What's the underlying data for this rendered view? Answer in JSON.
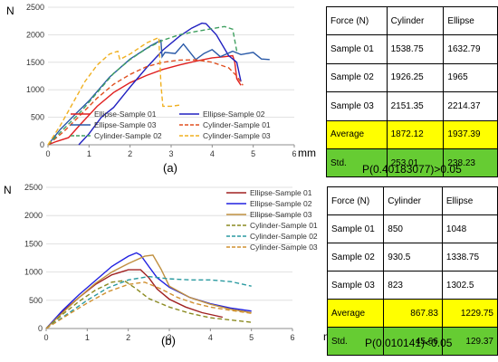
{
  "chart_data": [
    {
      "type": "line",
      "panel_label": "(a)",
      "ylabel": "N",
      "xlabel": "mm",
      "xlim": [
        0,
        6
      ],
      "ylim": [
        0,
        2500
      ],
      "xticks": [
        "0",
        "1",
        "2",
        "3",
        "4",
        "5",
        "6"
      ],
      "yticks": [
        "0",
        "500",
        "1000",
        "1500",
        "2000",
        "2500"
      ],
      "legend_position": "bottom",
      "series": [
        {
          "name": "Ellipse-Sample 01",
          "color": "#e02020",
          "dash": "solid",
          "x": [
            0,
            0.2,
            0.5,
            0.8,
            1.2,
            1.6,
            2.0,
            2.4,
            2.8,
            3.2,
            3.6,
            4.0,
            4.3,
            4.5,
            4.55,
            4.6,
            4.7
          ],
          "y": [
            0,
            60,
            130,
            380,
            700,
            950,
            1130,
            1260,
            1370,
            1450,
            1520,
            1580,
            1600,
            1620,
            1500,
            1200,
            1080
          ]
        },
        {
          "name": "Ellipse-Sample 02",
          "color": "#2020c0",
          "dash": "solid",
          "x": [
            0.75,
            1.0,
            1.3,
            1.6,
            2.0,
            2.4,
            2.8,
            3.2,
            3.5,
            3.75,
            3.85,
            4.1,
            4.4,
            4.6,
            4.7
          ],
          "y": [
            0,
            200,
            500,
            680,
            1050,
            1400,
            1720,
            1970,
            2120,
            2210,
            2200,
            2000,
            1620,
            1500,
            1150
          ]
        },
        {
          "name": "Ellipse-Sample 03",
          "color": "#2a5aa8",
          "dash": "solid",
          "x": [
            0,
            0.3,
            0.7,
            1.0,
            1.5,
            2.0,
            2.5,
            2.75,
            2.78,
            2.85,
            3.1,
            3.3,
            3.6,
            3.8,
            4.0,
            4.2,
            4.5,
            4.7,
            5.0,
            5.2,
            5.4
          ],
          "y": [
            0,
            280,
            580,
            800,
            1230,
            1560,
            1800,
            1900,
            1600,
            1680,
            1660,
            1830,
            1550,
            1660,
            1730,
            1600,
            1700,
            1640,
            1680,
            1560,
            1550
          ]
        },
        {
          "name": "Cylinder-Sample 01",
          "color": "#e05020",
          "dash": "dash",
          "x": [
            0,
            0.4,
            0.8,
            1.2,
            1.6,
            2.0,
            2.4,
            2.8,
            3.2,
            3.6,
            4.0,
            4.4,
            4.6,
            4.75
          ],
          "y": [
            0,
            250,
            550,
            850,
            1100,
            1280,
            1420,
            1500,
            1540,
            1545,
            1500,
            1400,
            1250,
            1080
          ]
        },
        {
          "name": "Cylinder-Sample 02",
          "color": "#40a060",
          "dash": "dash",
          "x": [
            0,
            0.4,
            0.8,
            1.2,
            1.6,
            2.0,
            2.4,
            2.8,
            3.2,
            3.6,
            4.0,
            4.3,
            4.5,
            4.6
          ],
          "y": [
            0,
            300,
            600,
            950,
            1300,
            1550,
            1750,
            1900,
            2000,
            2060,
            2110,
            2150,
            2100,
            1700
          ]
        },
        {
          "name": "Cylinder-Sample 03",
          "color": "#f0b020",
          "dash": "dash",
          "x": [
            0,
            0.3,
            0.6,
            0.9,
            1.2,
            1.5,
            1.7,
            1.75,
            2.0,
            2.4,
            2.7,
            2.75,
            2.8,
            3.0,
            3.2
          ],
          "y": [
            0,
            350,
            750,
            1150,
            1450,
            1650,
            1700,
            1550,
            1650,
            1850,
            1950,
            1100,
            700,
            700,
            720
          ]
        }
      ]
    },
    {
      "type": "line",
      "panel_label": "(b)",
      "ylabel": "N",
      "xlabel": "mm",
      "xlim": [
        0,
        6
      ],
      "ylim": [
        0,
        2500
      ],
      "xticks": [
        "0",
        "1",
        "2",
        "3",
        "4",
        "5",
        "6"
      ],
      "yticks": [
        "0",
        "500",
        "1000",
        "1500",
        "2000",
        "2500"
      ],
      "legend_position": "top-right",
      "series": [
        {
          "name": "Ellipse-Sample 01",
          "color": "#a02020",
          "dash": "solid",
          "x": [
            0,
            0.4,
            0.8,
            1.2,
            1.6,
            2.0,
            2.3,
            2.5,
            2.7,
            3.0,
            3.4,
            3.8,
            4.3
          ],
          "y": [
            0,
            300,
            550,
            780,
            950,
            1040,
            1040,
            900,
            700,
            520,
            380,
            280,
            200
          ]
        },
        {
          "name": "Ellipse-Sample 02",
          "color": "#2020e0",
          "dash": "solid",
          "x": [
            0,
            0.4,
            0.8,
            1.2,
            1.6,
            2.0,
            2.2,
            2.3,
            2.5,
            2.7,
            3.0,
            3.5,
            4.0,
            4.5,
            5.0
          ],
          "y": [
            0,
            320,
            600,
            850,
            1100,
            1280,
            1340,
            1300,
            1100,
            900,
            730,
            550,
            440,
            360,
            310
          ]
        },
        {
          "name": "Ellipse-Sample 03",
          "color": "#c09040",
          "dash": "solid",
          "x": [
            0,
            0.4,
            0.8,
            1.2,
            1.6,
            2.0,
            2.4,
            2.6,
            2.8,
            3.0,
            3.5,
            4.0,
            4.5,
            5.0
          ],
          "y": [
            0,
            280,
            550,
            800,
            1000,
            1150,
            1280,
            1300,
            1050,
            750,
            550,
            430,
            340,
            280
          ]
        },
        {
          "name": "Cylinder-Sample 01",
          "color": "#8a8a20",
          "dash": "dash",
          "x": [
            0,
            0.4,
            0.8,
            1.2,
            1.6,
            1.9,
            2.2,
            2.5,
            3.0,
            3.5,
            4.0,
            4.5,
            5.0
          ],
          "y": [
            0,
            250,
            480,
            680,
            820,
            850,
            700,
            530,
            380,
            270,
            190,
            150,
            110
          ]
        },
        {
          "name": "Cylinder-Sample 02",
          "color": "#2a9aa0",
          "dash": "dash",
          "x": [
            0,
            0.5,
            1.0,
            1.5,
            2.0,
            2.5,
            3.0,
            3.5,
            4.0,
            4.5,
            5.0
          ],
          "y": [
            0,
            250,
            500,
            720,
            860,
            920,
            880,
            860,
            860,
            830,
            750
          ]
        },
        {
          "name": "Cylinder-Sample 03",
          "color": "#d09030",
          "dash": "dash",
          "x": [
            0,
            0.5,
            1.0,
            1.5,
            2.0,
            2.4,
            2.8,
            3.2,
            3.6,
            4.0,
            4.5,
            5.0
          ],
          "y": [
            0,
            230,
            450,
            650,
            780,
            820,
            700,
            550,
            450,
            380,
            320,
            270
          ]
        }
      ]
    }
  ],
  "table_a": {
    "header": [
      "Force (N)",
      "Cylinder",
      "Ellipse"
    ],
    "rows": [
      [
        "Sample 01",
        "1538.75",
        "1632.79"
      ],
      [
        "Sample 02",
        "1926.25",
        "1965"
      ],
      [
        "Sample 03",
        "2151.35",
        "2214.37"
      ]
    ],
    "average": [
      "Average",
      "1872.12",
      "1937.39"
    ],
    "std": [
      "Std.",
      "253.01",
      "238.23"
    ],
    "p_value": "P(0.40183077)>0.05"
  },
  "table_b": {
    "header": [
      "Force (N)",
      "Cylinder",
      "Ellipse"
    ],
    "rows": [
      [
        "Sample 01",
        "850",
        "1048"
      ],
      [
        "Sample 02",
        "930.5",
        "1338.75"
      ],
      [
        "Sample 03",
        "823",
        "1302.5"
      ]
    ],
    "average": [
      "Average",
      "867.83",
      "1229.75"
    ],
    "std": [
      "Std.",
      "45.66",
      "129.37"
    ],
    "p_value": "P(0.010141)<0.05"
  }
}
